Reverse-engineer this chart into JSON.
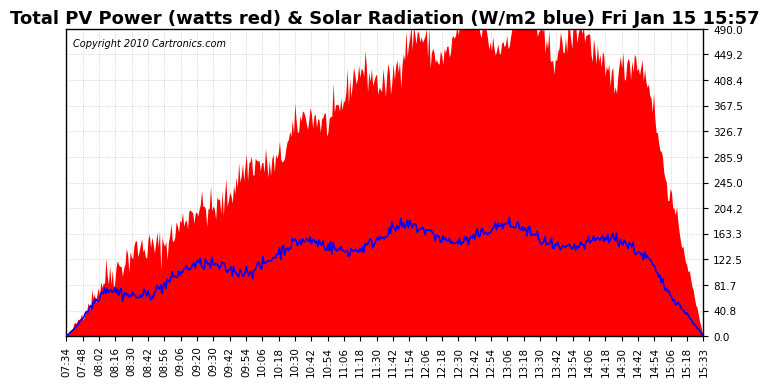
{
  "title": "Total PV Power (watts red) & Solar Radiation (W/m2 blue) Fri Jan 15 15:57",
  "copyright": "Copyright 2010 Cartronics.com",
  "background_color": "#ffffff",
  "plot_bg_color": "#ffffff",
  "grid_color": "#aaaaaa",
  "red_fill_color": "#ff0000",
  "blue_line_color": "#0000ff",
  "y_min": 0.0,
  "y_max": 490.0,
  "y_ticks": [
    0.0,
    40.8,
    81.7,
    122.5,
    163.3,
    204.2,
    245.0,
    285.9,
    326.7,
    367.5,
    408.4,
    449.2,
    490.0
  ],
  "x_labels": [
    "07:34",
    "07:48",
    "08:02",
    "08:16",
    "08:30",
    "08:42",
    "08:56",
    "09:06",
    "09:20",
    "09:30",
    "09:42",
    "09:54",
    "10:06",
    "10:18",
    "10:30",
    "10:42",
    "10:54",
    "11:06",
    "11:18",
    "11:30",
    "11:42",
    "11:54",
    "12:06",
    "12:18",
    "12:30",
    "12:42",
    "12:54",
    "13:06",
    "13:18",
    "13:30",
    "13:42",
    "13:54",
    "14:06",
    "14:18",
    "14:30",
    "14:42",
    "14:54",
    "15:06",
    "15:18",
    "15:33"
  ],
  "title_fontsize": 13,
  "tick_fontsize": 7.5,
  "copyright_fontsize": 7
}
